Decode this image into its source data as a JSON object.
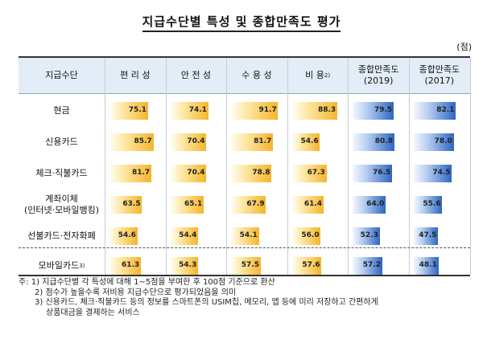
{
  "title": "지급수단별 특성 및 종합만족도 평가",
  "unit": "(점)",
  "chart_data": {
    "type": "bar",
    "row_header": "지급수단",
    "columns": [
      {
        "key": "convenience",
        "label": "편 리 성",
        "sup": "",
        "color": "gold"
      },
      {
        "key": "safety",
        "label": "안 전 성",
        "sup": "",
        "color": "gold"
      },
      {
        "key": "acceptance",
        "label": "수 용 성",
        "sup": "",
        "color": "gold"
      },
      {
        "key": "cost",
        "label": "비 용",
        "sup": "2)",
        "color": "gold"
      },
      {
        "key": "sat2019",
        "label": "종합만족도\n(2019)",
        "sup": "",
        "color": "blue"
      },
      {
        "key": "sat2017",
        "label": "종합만족도\n(2017)",
        "sup": "",
        "color": "blue"
      }
    ],
    "rows": [
      {
        "label": "현금",
        "values": [
          75.1,
          74.1,
          91.7,
          88.3,
          79.5,
          82.1
        ]
      },
      {
        "label": "신용카드",
        "values": [
          85.7,
          70.4,
          81.7,
          54.6,
          80.8,
          78.0
        ]
      },
      {
        "label": "체크·직불카드",
        "values": [
          81.7,
          70.4,
          78.8,
          67.3,
          76.5,
          74.5
        ]
      },
      {
        "label": "계좌이체\n(인터넷·모바일뱅킹)",
        "values": [
          63.5,
          65.1,
          67.9,
          61.4,
          64.0,
          55.6
        ]
      },
      {
        "label": "선불카드·전자화폐",
        "values": [
          54.6,
          54.4,
          54.1,
          56.0,
          52.3,
          47.5
        ]
      },
      {
        "label": "모바일카드",
        "sup": "3)",
        "values": [
          61.3,
          54.3,
          57.5,
          57.6,
          57.2,
          48.1
        ]
      }
    ],
    "value_range": [
      0,
      100
    ]
  },
  "notes": [
    "주: 1) 지급수단별 각 특성에 대해 1~5점을 부여한 후 100점 기준으로 환산",
    "2) 점수가 높을수록 저비용 지급수단으로 평가되었음을 의미",
    "3) 신용카드, 체크·직불카드 등의 정보를 스마트폰의 USIM칩, 메모리, 앱 등에 미리 저장하고 간편하게",
    "상품대금을 결제하는 서비스"
  ]
}
